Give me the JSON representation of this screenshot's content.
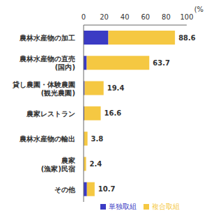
{
  "chart_data": {
    "type": "bar",
    "orientation": "horizontal",
    "stacked": true,
    "grid": false,
    "legend": "bottom-right",
    "xlabel": "(%)",
    "categories": [
      "農林水産物の加工",
      "農林水産物の直売(国内)",
      "貸し農園・体験農園(観光農園)",
      "農家レストラン",
      "農林水産物の輸出",
      "農家(漁家)民宿",
      "その他"
    ],
    "series": [
      {
        "name": "単独取組",
        "color": "#3b3bc4",
        "values": [
          24.0,
          3.0,
          1.0,
          0.6,
          0.3,
          0.2,
          3.2
        ]
      },
      {
        "name": "複合取組",
        "color": "#f5c842",
        "values": [
          64.6,
          60.7,
          18.4,
          16.0,
          3.5,
          2.2,
          7.5
        ]
      }
    ],
    "totals": [
      88.6,
      63.7,
      19.4,
      16.6,
      3.8,
      2.4,
      10.7
    ],
    "xlim": [
      0,
      100
    ],
    "xticks": [
      0,
      20,
      40,
      60,
      80,
      100
    ]
  }
}
